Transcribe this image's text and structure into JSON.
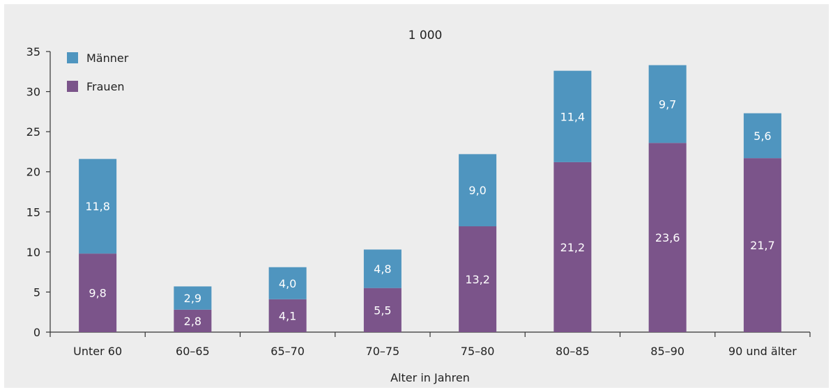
{
  "chart_data": {
    "type": "bar",
    "stacked": true,
    "unit_label": "1 000",
    "xlabel": "Alter in Jahren",
    "ylabel": "",
    "ylim": [
      0,
      35
    ],
    "yticks": [
      "0",
      "5",
      "10",
      "15",
      "20",
      "25",
      "30",
      "35"
    ],
    "categories": [
      "Unter 60",
      "60–65",
      "65–70",
      "70–75",
      "75–80",
      "80–85",
      "85–90",
      "90 und älter"
    ],
    "series": [
      {
        "name": "Frauen",
        "color": "#7b548a",
        "values": [
          9.8,
          2.8,
          4.1,
          5.5,
          13.2,
          21.2,
          23.6,
          21.7
        ],
        "labels": [
          "9,8",
          "2,8",
          "4,1",
          "5,5",
          "13,2",
          "21,2",
          "23,6",
          "21,7"
        ]
      },
      {
        "name": "Männer",
        "color": "#4f95bf",
        "values": [
          11.8,
          2.9,
          4.0,
          4.8,
          9.0,
          11.4,
          9.7,
          5.6
        ],
        "labels": [
          "11,8",
          "2,9",
          "4,0",
          "4,8",
          "9,0",
          "11,4",
          "9,7",
          "5,6"
        ]
      }
    ],
    "legend": {
      "placement": "top-left",
      "order": [
        "Männer",
        "Frauen"
      ]
    },
    "grid": false
  }
}
